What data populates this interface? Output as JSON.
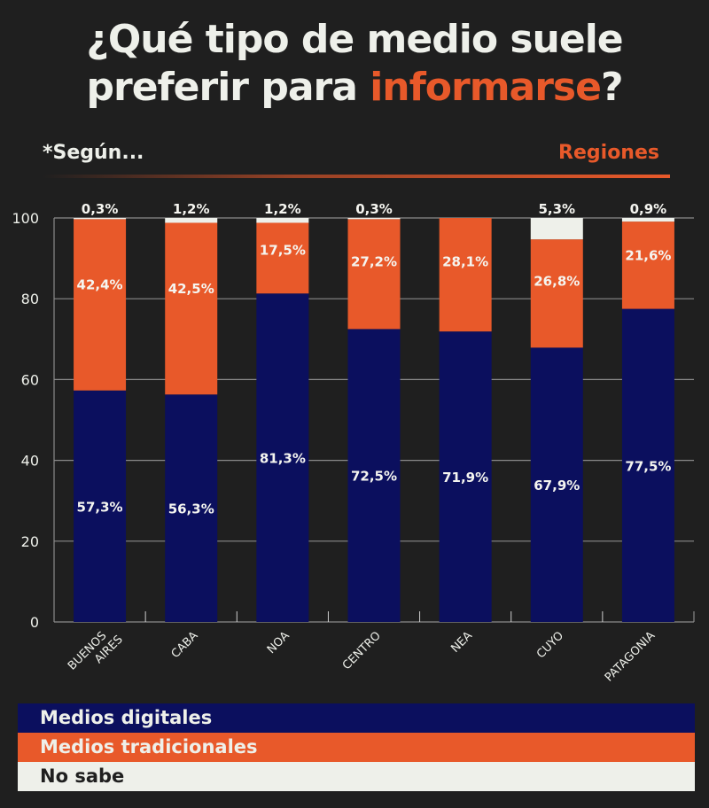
{
  "header": {
    "title_line1": "¿Qué tipo de medio suele",
    "title_line2_prefix": "preferir para ",
    "title_line2_highlight": "informarse",
    "title_line2_suffix": "?",
    "subtitle_left": "*Según...",
    "subtitle_right": "Regiones"
  },
  "colors": {
    "background": "#1f1f1f",
    "digital": "#0b0f5e",
    "traditional": "#e8592a",
    "no_sabe": "#eef0ea",
    "text_light": "#eef0ea",
    "text_dark": "#1f1f1f"
  },
  "chart_data": {
    "type": "bar",
    "stacked": true,
    "title": "¿Qué tipo de medio suele preferir para informarse?",
    "xlabel": "",
    "ylabel": "",
    "ylim": [
      0,
      100
    ],
    "yticks": [
      0,
      20,
      40,
      60,
      80,
      100
    ],
    "grid": true,
    "legend_position": "bottom",
    "categories": [
      "BUENOS AIRES",
      "CABA",
      "NOA",
      "CENTRO",
      "NEA",
      "CUYO",
      "PATAGONIA"
    ],
    "series": [
      {
        "name": "Medios digitales",
        "color": "#0b0f5e",
        "values": [
          57.3,
          56.3,
          81.3,
          72.5,
          71.9,
          67.9,
          77.5
        ],
        "labels": [
          "57,3%",
          "56,3%",
          "81,3%",
          "72,5%",
          "71,9%",
          "67,9%",
          "77,5%"
        ]
      },
      {
        "name": "Medios tradicionales",
        "color": "#e8592a",
        "values": [
          42.4,
          42.5,
          17.5,
          27.2,
          28.1,
          26.8,
          21.6
        ],
        "labels": [
          "42,4%",
          "42,5%",
          "17,5%",
          "27,2%",
          "28,1%",
          "26,8%",
          "21,6%"
        ]
      },
      {
        "name": "No sabe",
        "color": "#eef0ea",
        "values": [
          0.3,
          1.2,
          1.2,
          0.3,
          0.0,
          5.3,
          0.9
        ],
        "labels": [
          "0,3%",
          "1,2%",
          "1,2%",
          "0,3%",
          "",
          "5,3%",
          "0,9%"
        ]
      }
    ]
  },
  "legend": {
    "items": [
      {
        "label": "Medios digitales"
      },
      {
        "label": "Medios tradicionales"
      },
      {
        "label": "No sabe"
      }
    ]
  }
}
